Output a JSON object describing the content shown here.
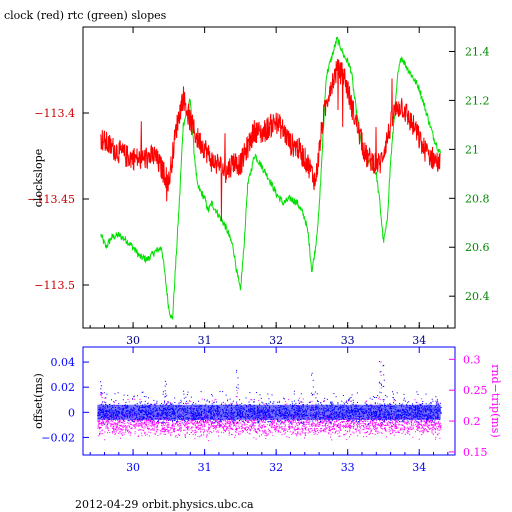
{
  "title": "clock (red) rtc (green) slopes",
  "footer": "2012-04-29  orbit.physics.ubc.ca",
  "colors": {
    "clock": "#ff0000",
    "rtc": "#00e000",
    "offset": "#0000ff",
    "rndtrip": "#ff00ff",
    "axis": "#000000"
  },
  "chart_data": [
    {
      "type": "line",
      "title": "clock (red) rtc (green) slopes",
      "xlim": [
        29.3,
        34.5
      ],
      "x_ticks": [
        30,
        31,
        32,
        33,
        34
      ],
      "ylabel": "clockslope",
      "ylim": [
        -113.525,
        -113.35
      ],
      "y_ticks": [
        -113.4,
        -113.45,
        -113.5
      ],
      "y_ticklabels": [
        "−113.4",
        "−113.45",
        "−113.5"
      ],
      "y2lim": [
        20.27,
        21.5
      ],
      "y2_ticks": [
        20.4,
        20.6,
        20.8,
        21,
        21.2,
        21.4
      ],
      "series": [
        {
          "color": "red",
          "axis": "left",
          "x": [
            29.55,
            29.7,
            29.9,
            30.1,
            30.3,
            30.5,
            30.6,
            30.7,
            30.8,
            30.9,
            31.0,
            31.1,
            31.2,
            31.3,
            31.4,
            31.5,
            31.6,
            31.7,
            31.8,
            31.9,
            32.0,
            32.1,
            32.2,
            32.3,
            32.45,
            32.55,
            32.65,
            32.75,
            32.85,
            32.95,
            33.05,
            33.15,
            33.25,
            33.35,
            33.45,
            33.55,
            33.65,
            33.75,
            33.85,
            33.95,
            34.05,
            34.15,
            34.3
          ],
          "y": [
            -113.415,
            -113.42,
            -113.425,
            -113.427,
            -113.425,
            -113.44,
            -113.41,
            -113.39,
            -113.405,
            -113.415,
            -113.42,
            -113.428,
            -113.43,
            -113.435,
            -113.428,
            -113.43,
            -113.42,
            -113.41,
            -113.412,
            -113.408,
            -113.405,
            -113.41,
            -113.418,
            -113.42,
            -113.43,
            -113.44,
            -113.405,
            -113.385,
            -113.375,
            -113.378,
            -113.395,
            -113.41,
            -113.425,
            -113.428,
            -113.43,
            -113.415,
            -113.4,
            -113.395,
            -113.403,
            -113.41,
            -113.42,
            -113.425,
            -113.43
          ]
        },
        {
          "color": "green",
          "axis": "right",
          "x": [
            29.55,
            29.62,
            29.7,
            29.8,
            29.9,
            30.0,
            30.1,
            30.2,
            30.3,
            30.4,
            30.5,
            30.55,
            30.6,
            30.65,
            30.7,
            30.8,
            30.85,
            30.9,
            31.0,
            31.05,
            31.1,
            31.2,
            31.3,
            31.4,
            31.45,
            31.5,
            31.55,
            31.6,
            31.7,
            31.8,
            31.9,
            32.0,
            32.1,
            32.2,
            32.3,
            32.4,
            32.45,
            32.5,
            32.55,
            32.6,
            32.7,
            32.75,
            32.8,
            32.85,
            32.9,
            32.95,
            33.0,
            33.05,
            33.1,
            33.2,
            33.3,
            33.4,
            33.45,
            33.5,
            33.55,
            33.6,
            33.7,
            33.75,
            33.8,
            33.9,
            34.0,
            34.1,
            34.2,
            34.3
          ],
          "y": [
            20.65,
            20.6,
            20.64,
            20.65,
            20.63,
            20.6,
            20.56,
            20.55,
            20.58,
            20.6,
            20.35,
            20.3,
            20.55,
            20.8,
            21.1,
            21.2,
            21.0,
            20.85,
            20.8,
            20.75,
            20.78,
            20.73,
            20.68,
            20.6,
            20.5,
            20.42,
            20.6,
            20.85,
            20.98,
            20.93,
            20.88,
            20.82,
            20.78,
            20.8,
            20.78,
            20.72,
            20.65,
            20.5,
            20.6,
            20.75,
            21.3,
            21.35,
            21.4,
            21.45,
            21.42,
            21.38,
            21.36,
            21.32,
            21.2,
            21.0,
            20.95,
            20.9,
            20.78,
            20.62,
            20.7,
            20.95,
            21.3,
            21.38,
            21.35,
            21.3,
            21.25,
            21.15,
            21.05,
            20.98
          ]
        }
      ]
    },
    {
      "type": "scatter",
      "xlim": [
        29.3,
        34.5
      ],
      "x_ticks": [
        30,
        31,
        32,
        33,
        34
      ],
      "ylabel": "offset(ms)",
      "ylim": [
        -0.034,
        0.052
      ],
      "y_ticks": [
        0.04,
        0.02,
        0,
        -0.02
      ],
      "y_ticklabels": [
        "0.04",
        "0.02",
        "0",
        "−0.02"
      ],
      "y2label": "rnd−trip(ms)",
      "y2lim": [
        0.145,
        0.32
      ],
      "y2_ticks": [
        0.3,
        0.25,
        0.2,
        0.15
      ],
      "x_range": [
        29.5,
        34.3
      ],
      "series": [
        {
          "color": "blue",
          "axis": "left",
          "center": 0.0,
          "spread": 0.008,
          "spikes": [
            [
              29.55,
              0.035
            ],
            [
              30.45,
              0.03
            ],
            [
              31.45,
              0.034
            ],
            [
              32.5,
              0.032
            ],
            [
              33.45,
              0.05
            ],
            [
              33.5,
              0.045
            ]
          ]
        },
        {
          "color": "magenta",
          "axis": "right",
          "center": 0.195,
          "spread": 0.02,
          "spikes": [
            [
              29.55,
              0.25
            ],
            [
              30.45,
              0.24
            ],
            [
              31.45,
              0.25
            ],
            [
              32.5,
              0.25
            ],
            [
              33.45,
              0.3
            ]
          ]
        }
      ]
    }
  ]
}
